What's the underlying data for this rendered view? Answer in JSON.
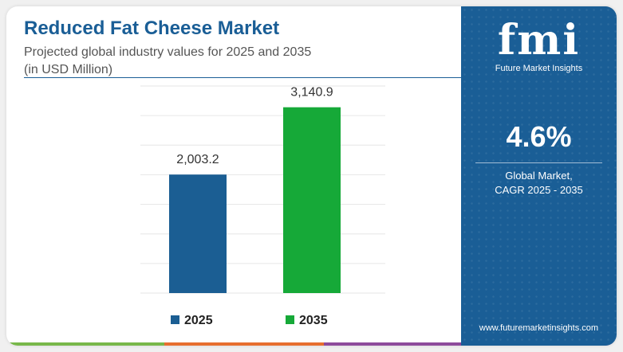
{
  "header": {
    "title": "Reduced Fat Cheese Market",
    "subtitle_line1": "Projected global industry values for 2025 and 2035",
    "subtitle_line2": "(in USD Million)"
  },
  "chart_data": {
    "type": "bar",
    "categories": [
      "2025",
      "2035"
    ],
    "values": [
      2003.2,
      3140.9
    ],
    "value_labels": [
      "2,003.2",
      "3,140.9"
    ],
    "colors": [
      "#1b5e93",
      "#16a938"
    ],
    "ylim": [
      0,
      3500
    ],
    "grid": true,
    "legend": "bottom",
    "legend_labels": [
      "2025",
      "2035"
    ]
  },
  "panel": {
    "logo": "fmi",
    "logo_sub": "Future Market Insights",
    "cagr_value": "4.6%",
    "cagr_label_line1": "Global Market,",
    "cagr_label_line2": "CAGR 2025 - 2035",
    "url": "www.futuremarketinsights.com",
    "background_color": "#1a5e96"
  },
  "footer_colors": [
    "#78b84a",
    "#e76f2f",
    "#8d4b9b"
  ]
}
